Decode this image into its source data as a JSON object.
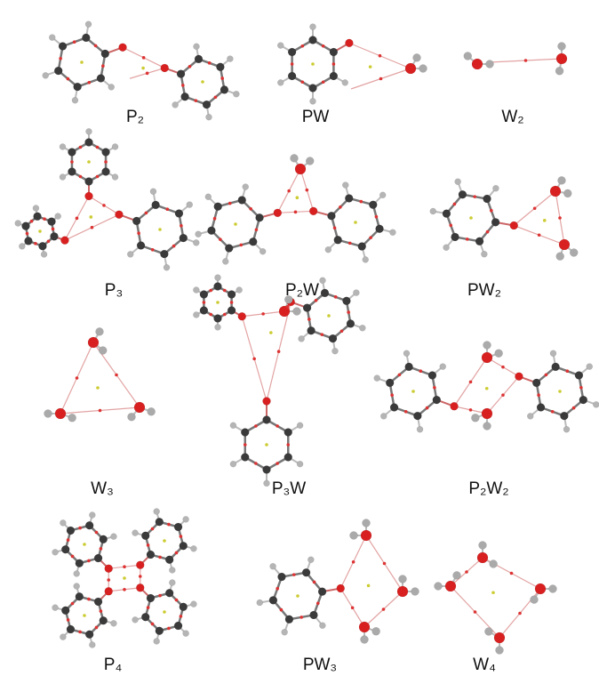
{
  "panels": [
    {
      "label": "P₂"
    },
    {
      "label": "PW"
    },
    {
      "label": "W₂"
    },
    {
      "label": "P₃"
    },
    {
      "label": "P₂W"
    },
    {
      "label": "PW₂"
    },
    {
      "label": "W₃"
    },
    {
      "label": "P₃W"
    },
    {
      "label": "P₂W₂"
    },
    {
      "label": "P₄"
    },
    {
      "label": "PW₃"
    },
    {
      "label": "W₄"
    }
  ]
}
